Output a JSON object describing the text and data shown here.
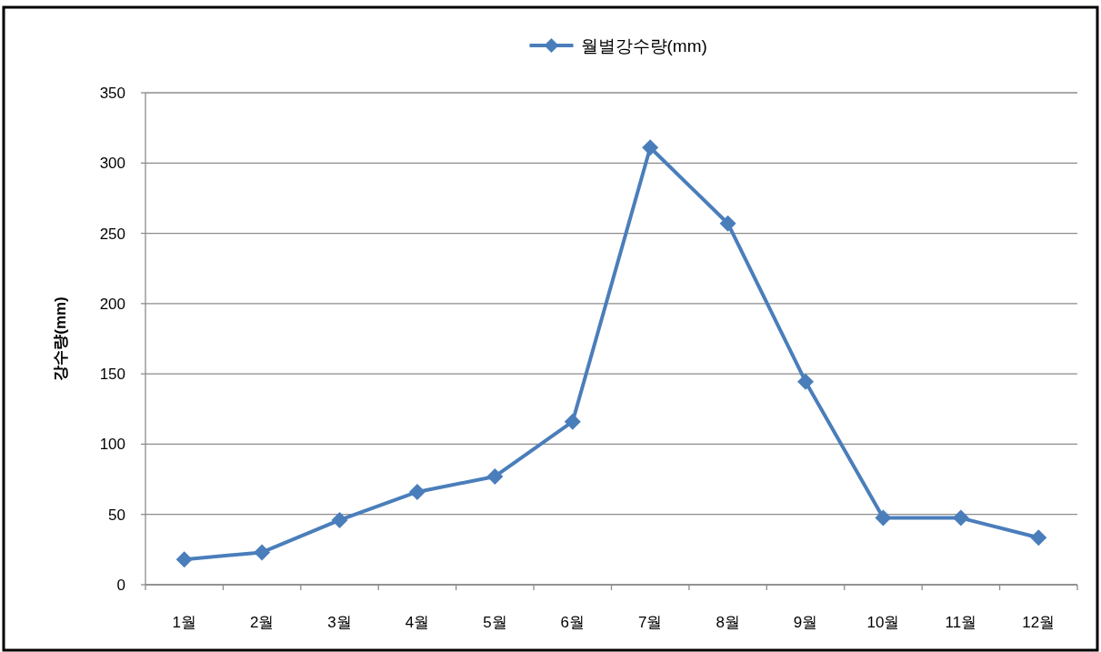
{
  "chart_data": {
    "type": "line",
    "ylabel": "강수량(mm)",
    "categories": [
      "1월",
      "2월",
      "3월",
      "4월",
      "5월",
      "6월",
      "7월",
      "8월",
      "9월",
      "10월",
      "11월",
      "12월"
    ],
    "series": [
      {
        "name": "월별강수량(mm)",
        "color": "#4a7ebb",
        "values": [
          18,
          23,
          46,
          66,
          77,
          116,
          311,
          257,
          144.5,
          47.5,
          47.5,
          33.5
        ]
      }
    ],
    "ylim": [
      0,
      350
    ],
    "yticks": [
      0,
      50,
      100,
      150,
      200,
      250,
      300,
      350
    ],
    "grid": "y",
    "legend": "top",
    "marker": "diamond",
    "line_style": "solid"
  }
}
